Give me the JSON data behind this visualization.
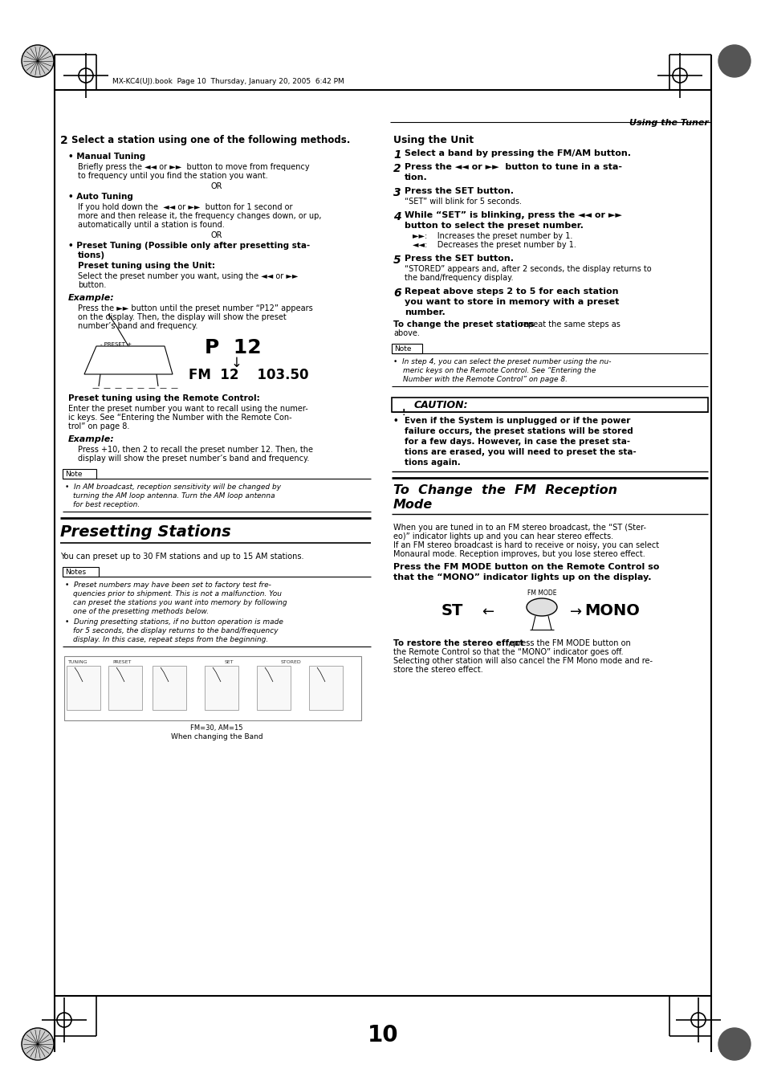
{
  "page_num": "10",
  "header_text": "MX-KC4(UJ).book  Page 10  Thursday, January 20, 2005  6:42 PM",
  "section_header_right": "Using the Tuner",
  "bg_color": "#ffffff"
}
